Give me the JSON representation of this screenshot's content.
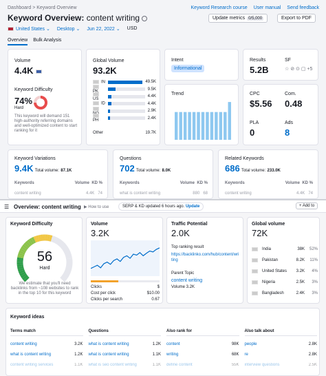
{
  "top": {
    "crumb1": "Dashboard",
    "crumb2": "Keyword Overview",
    "title": "Keyword Overview:",
    "keyword": "content writing",
    "links": [
      "Keyword Research course",
      "User manual",
      "Send feedback"
    ],
    "db": "United States",
    "device": "Desktop",
    "date": "Jun 22, 2022",
    "currency": "USD",
    "update": "Update metrics",
    "update_count": "0/5,000",
    "export": "Export to PDF",
    "tabs": [
      "Overview",
      "Bulk Analysis"
    ]
  },
  "volume": {
    "label": "Volume",
    "value": "4.4K"
  },
  "kd": {
    "label": "Keyword Difficulty",
    "value": "74%",
    "level": "Hard",
    "desc": "This keyword will demand 151 high-authority referring domains and well-optimized content to start ranking for it",
    "percent": 74
  },
  "gv": {
    "label": "Global Volume",
    "value": "93.2K",
    "rows": [
      {
        "c": "IN",
        "v": "49.5K",
        "p": 1.0
      },
      {
        "c": "PK",
        "v": "9.5K",
        "p": 0.2
      },
      {
        "c": "US",
        "v": "4.4K",
        "p": 0.1
      },
      {
        "c": "ID",
        "v": "4.4K",
        "p": 0.09
      },
      {
        "c": "NG",
        "v": "2.9K",
        "p": 0.06
      },
      {
        "c": "PH",
        "v": "2.4K",
        "p": 0.05
      }
    ],
    "other_label": "Other",
    "other": "19.7K"
  },
  "intent": {
    "label": "Intent",
    "value": "Informational"
  },
  "results": {
    "label": "Results",
    "value": "5.2B"
  },
  "sf": {
    "label": "SF",
    "more": "+5"
  },
  "trend": {
    "label": "Trend",
    "bars": [
      0.72,
      0.72,
      0.72,
      0.72,
      0.72,
      0.72,
      0.72,
      0.72,
      0.72,
      0.72,
      0.72,
      0.72,
      0.98
    ]
  },
  "cpc": {
    "label": "CPC",
    "value": "$5.56"
  },
  "com": {
    "label": "Com.",
    "value": "0.48"
  },
  "pla": {
    "label": "PLA",
    "value": "0"
  },
  "ads": {
    "label": "Ads",
    "value": "8"
  },
  "variations": {
    "label": "Keyword Variations",
    "value": "9.4K",
    "total_lbl": "Total volume:",
    "total": "87.1K"
  },
  "questions": {
    "label": "Questions",
    "value": "702",
    "total_lbl": "Total volume:",
    "total": "8.0K"
  },
  "related": {
    "label": "Related Keywords",
    "value": "686",
    "total_lbl": "Total volume:",
    "total": "233.0K"
  },
  "tbl_heads": {
    "kw": "Keywords",
    "vol": "Volume",
    "kd": "KD %"
  },
  "faded": [
    {
      "kw": "content writing",
      "vol": "4.4K",
      "kd": "74"
    },
    {
      "kw": "what is content writing",
      "vol": "880",
      "kd": "68"
    },
    {
      "kw": "content writing",
      "vol": "4.4K",
      "kd": "74"
    }
  ],
  "ov": {
    "title": "Overview: content writing",
    "how": "How to use",
    "serp": "SERP & KD updated 6 hours ago.",
    "update": "Update",
    "add": "Add to"
  },
  "kd2": {
    "label": "Keyword Difficulty",
    "value": "56",
    "level": "Hard",
    "desc": "We estimate that you'll need backlinks from ~108 websites to rank in the top 10 for this keyword",
    "percent": 56
  },
  "vol2": {
    "label": "Volume",
    "value": "3.2K",
    "clicks_lbl": "Clicks",
    "clicks": "$",
    "cpp_lbl": "Cost per click",
    "cpp": "$10.00",
    "cps_lbl": "Clicks per search",
    "cps": "0.67",
    "clicks_fill": 0.4,
    "line": [
      0.2,
      0.25,
      0.3,
      0.22,
      0.35,
      0.4,
      0.33,
      0.45,
      0.5,
      0.42,
      0.55,
      0.6,
      0.52,
      0.65,
      0.62,
      0.7,
      0.6,
      0.68,
      0.75,
      0.72,
      0.8,
      0.85
    ]
  },
  "tp": {
    "label": "Traffic Potential",
    "value": "2.0K",
    "rr_lbl": "Top ranking result",
    "url": "https://backlinko.com/hub/content/writing",
    "parent_lbl": "Parent Topic",
    "parent": "content writing",
    "pvol": "Volume 3.2K"
  },
  "gv2": {
    "label": "Global volume",
    "value": "72K",
    "rows": [
      {
        "c": "India",
        "v": "38K",
        "p": "52%",
        "f": 0.52
      },
      {
        "c": "Pakistan",
        "v": "8.2K",
        "p": "11%",
        "f": 0.11
      },
      {
        "c": "United States",
        "v": "3.2K",
        "p": "4%",
        "f": 0.04
      },
      {
        "c": "Nigeria",
        "v": "2.5K",
        "p": "3%",
        "f": 0.03
      },
      {
        "c": "Bangladesh",
        "v": "2.4K",
        "p": "3%",
        "f": 0.03
      }
    ]
  },
  "ideas": {
    "label": "Keyword ideas",
    "cols": [
      {
        "h": "Terms match",
        "rows": [
          [
            "content writing",
            "3.2K"
          ],
          [
            "what is content writing",
            "1.2K"
          ],
          [
            "content writing services",
            "1.1K"
          ]
        ]
      },
      {
        "h": "Questions",
        "rows": [
          [
            "what is content writing",
            "1.2K"
          ],
          [
            "what is content writing",
            "1.1K"
          ],
          [
            "what is seo content writing",
            "1.1K"
          ]
        ]
      },
      {
        "h": "Also rank for",
        "rows": [
          [
            "content",
            "98K"
          ],
          [
            "writing",
            "68K"
          ],
          [
            "define content",
            "55K"
          ]
        ]
      },
      {
        "h": "Also talk about",
        "rows": [
          [
            "people",
            "2.8K"
          ],
          [
            "re",
            "2.8K"
          ],
          [
            "interview questions",
            "2.5K"
          ]
        ]
      }
    ]
  },
  "colors": {
    "accent": "#006dca",
    "kd_red": "#e84c4c",
    "trend": "#8ec8f0",
    "green": "#00a36c"
  }
}
